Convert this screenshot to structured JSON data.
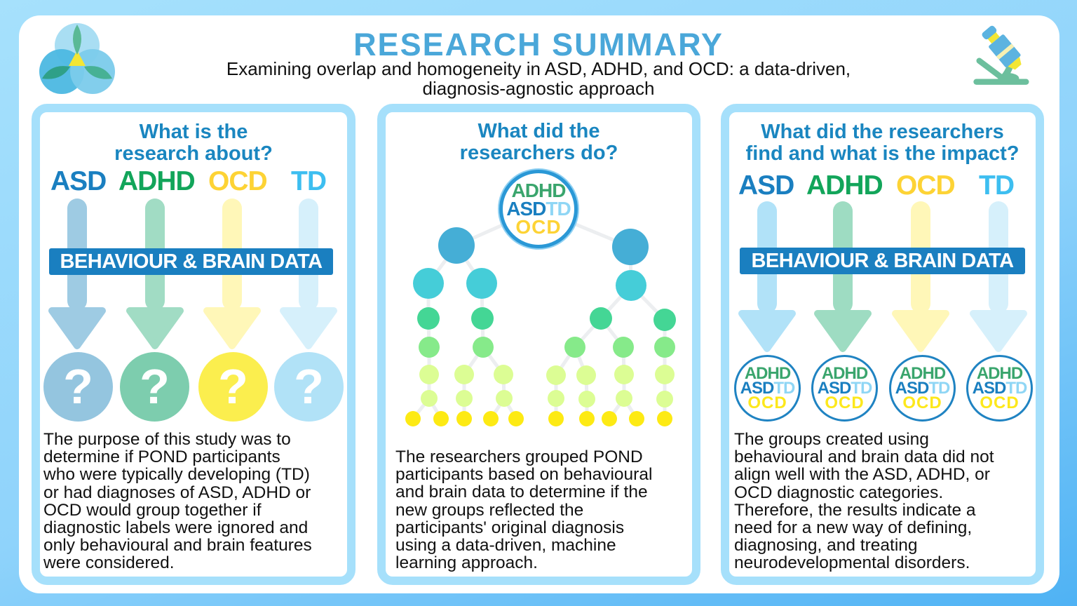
{
  "header": {
    "title": "RESEARCH SUMMARY",
    "subtitle_line1": "Examining overlap and homogeneity in ASD, ADHD, and OCD: a data-driven,",
    "subtitle_line2": "diagnosis-agnostic approach"
  },
  "logo": {
    "icon": "trefoil-logo-icon"
  },
  "microscope": {
    "icon": "microscope-icon"
  },
  "groups": {
    "asd": "ASD",
    "adhd": "ADHD",
    "ocd": "OCD",
    "td": "TD"
  },
  "colors": {
    "asd": "#1a7fc0",
    "adhd": "#12a55a",
    "ocd": "#fdd335",
    "td": "#3dbef0",
    "title": "#4aa7d9",
    "heading": "#1a86c0",
    "panel_border": "#a6e0fb"
  },
  "panel1": {
    "heading_line1": "What is the",
    "heading_line2": "research about?",
    "bar": "BEHAVIOUR & BRAIN DATA",
    "question": "?",
    "text": [
      "The purpose of this study was to",
      "determine if POND participants",
      "who were typically developing (TD)",
      "or had diagnoses of ASD, ADHD or",
      "OCD would group together if",
      "diagnostic labels were ignored and",
      "only behavioural and brain features",
      "were considered."
    ]
  },
  "panel2": {
    "heading_line1": "What did the",
    "heading_line2": "researchers do?",
    "text": [
      "The researchers grouped POND",
      "participants based on behavioural",
      "and brain data to determine if the",
      "new groups reflected the",
      "participants' original diagnosis",
      "using a data-driven, machine",
      "learning approach."
    ]
  },
  "panel3": {
    "heading_line1": "What did the researchers",
    "heading_line2": "find and what is the impact?",
    "bar": "BEHAVIOUR & BRAIN DATA",
    "text": [
      "The groups created using",
      "behavioural and brain data did not",
      "align well with the ASD, ADHD, or",
      "OCD diagnostic categories.",
      "Therefore, the results indicate a",
      "need for a new way of defining,",
      "diagnosing, and treating",
      "neurodevelopmental disorders."
    ]
  }
}
